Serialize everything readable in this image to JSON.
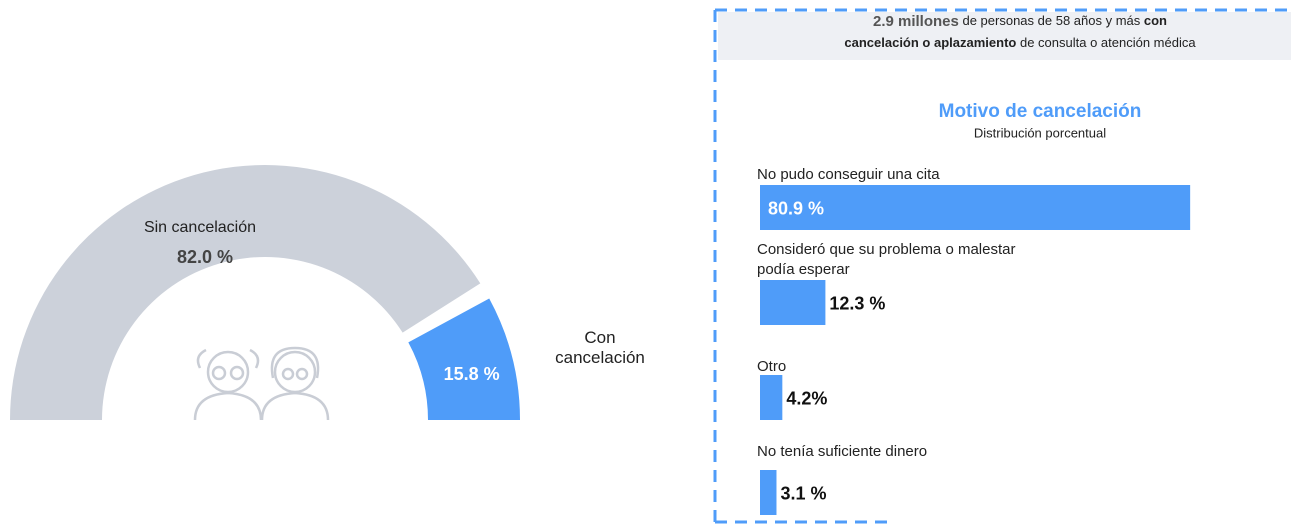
{
  "header": {
    "parts": [
      "2.9 millones",
      "de personas de 58 años y más",
      "con",
      "cancelación o aplazamiento",
      "de consulta o atención médica"
    ]
  },
  "chart_data": [
    {
      "type": "donut",
      "categories": [
        "Sin cancelación",
        "Con cancelación"
      ],
      "values": [
        82.0,
        15.8
      ],
      "value_labels": [
        "82.0 %",
        "15.8 %"
      ],
      "colors": [
        "#ccd1da",
        "#4f9cf9"
      ]
    },
    {
      "type": "bar",
      "title": "Motivo de cancelación",
      "subtitle": "Distribución porcentual",
      "categories": [
        "No pudo conseguir una cita",
        "Consideró que su problema o malestar podía esperar",
        "Otro",
        "No tenía suficiente dinero"
      ],
      "values": [
        80.9,
        12.3,
        4.2,
        3.1
      ],
      "value_labels": [
        "80.9 %",
        "12.3 %",
        "4.2%",
        "3.1 %"
      ],
      "color": "#4f9cf9",
      "xlim": [
        0,
        82
      ]
    }
  ]
}
